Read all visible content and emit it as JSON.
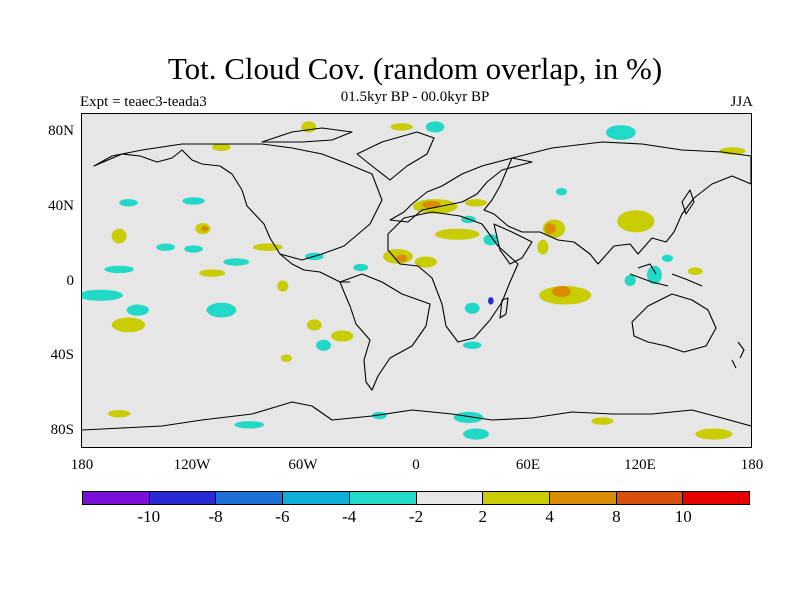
{
  "title": "Tot. Cloud Cov. (random overlap, in %)",
  "subtitle": "01.5kyr BP - 00.0kyr BP",
  "left_label": "Expt = teaec3-teada3",
  "right_label": "JJA",
  "y_ticks": [
    "80N",
    "40N",
    "0",
    "40S",
    "80S"
  ],
  "x_ticks": [
    "180",
    "120W",
    "60W",
    "0",
    "60E",
    "120E",
    "180"
  ],
  "colorbar": {
    "colors": [
      "#7a0fd8",
      "#2a2ad4",
      "#1e6fd6",
      "#0fb0d8",
      "#22d9c8",
      "#e6e6e6",
      "#c8cc00",
      "#d98c00",
      "#d9500a",
      "#e60000"
    ],
    "labels": [
      "-10",
      "-8",
      "-6",
      "-4",
      "-2",
      "2",
      "4",
      "8",
      "10"
    ]
  },
  "map": {
    "type": "filled-contour-map",
    "projection": "cylindrical-equidistant",
    "lon_range": [
      -180,
      180
    ],
    "lat_range": [
      -90,
      90
    ],
    "variable": "Total cloud cover difference (%)",
    "anomaly_regions": [
      {
        "lon": -58,
        "lat": 83,
        "rx": 4,
        "ry": 3,
        "level": "4"
      },
      {
        "lon": -8,
        "lat": 83,
        "rx": 6,
        "ry": 2,
        "level": "4"
      },
      {
        "lon": 10,
        "lat": 83,
        "rx": 5,
        "ry": 3,
        "level": "-4"
      },
      {
        "lon": 110,
        "lat": 80,
        "rx": 8,
        "ry": 4,
        "level": "-4"
      },
      {
        "lon": -105,
        "lat": 72,
        "rx": 5,
        "ry": 2,
        "level": "4"
      },
      {
        "lon": -155,
        "lat": 42,
        "rx": 5,
        "ry": 2,
        "level": "-4"
      },
      {
        "lon": -120,
        "lat": 43,
        "rx": 6,
        "ry": 2,
        "level": "-4"
      },
      {
        "lon": -115,
        "lat": 28,
        "rx": 4,
        "ry": 3,
        "level": "4"
      },
      {
        "lon": -114,
        "lat": 28,
        "rx": 2,
        "ry": 1.5,
        "level": "8"
      },
      {
        "lon": -160,
        "lat": 24,
        "rx": 4,
        "ry": 4,
        "level": "4"
      },
      {
        "lon": -135,
        "lat": 18,
        "rx": 5,
        "ry": 2,
        "level": "-4"
      },
      {
        "lon": -120,
        "lat": 17,
        "rx": 5,
        "ry": 2,
        "level": "-4"
      },
      {
        "lon": -97,
        "lat": 10,
        "rx": 7,
        "ry": 2,
        "level": "-4"
      },
      {
        "lon": -80,
        "lat": 18,
        "rx": 8,
        "ry": 2,
        "level": "4"
      },
      {
        "lon": -55,
        "lat": 13,
        "rx": 5,
        "ry": 2,
        "level": "-4"
      },
      {
        "lon": -30,
        "lat": 7,
        "rx": 4,
        "ry": 2,
        "level": "-4"
      },
      {
        "lon": -160,
        "lat": 6,
        "rx": 8,
        "ry": 2,
        "level": "-4"
      },
      {
        "lon": -110,
        "lat": 4,
        "rx": 7,
        "ry": 2,
        "level": "4"
      },
      {
        "lon": -72,
        "lat": -3,
        "rx": 3,
        "ry": 3,
        "level": "4"
      },
      {
        "lon": -170,
        "lat": -8,
        "rx": 12,
        "ry": 3,
        "level": "-4"
      },
      {
        "lon": -150,
        "lat": -16,
        "rx": 6,
        "ry": 3,
        "level": "-4"
      },
      {
        "lon": -105,
        "lat": -16,
        "rx": 8,
        "ry": 4,
        "level": "-4"
      },
      {
        "lon": -155,
        "lat": -24,
        "rx": 9,
        "ry": 4,
        "level": "4"
      },
      {
        "lon": -55,
        "lat": -24,
        "rx": 4,
        "ry": 3,
        "level": "4"
      },
      {
        "lon": -40,
        "lat": -30,
        "rx": 6,
        "ry": 3,
        "level": "4"
      },
      {
        "lon": -50,
        "lat": -35,
        "rx": 4,
        "ry": 3,
        "level": "-4"
      },
      {
        "lon": -70,
        "lat": -42,
        "rx": 3,
        "ry": 2,
        "level": "4"
      },
      {
        "lon": 10,
        "lat": 40,
        "rx": 12,
        "ry": 4,
        "level": "4"
      },
      {
        "lon": 8,
        "lat": 41,
        "rx": 5,
        "ry": 2,
        "level": "8"
      },
      {
        "lon": 32,
        "lat": 42,
        "rx": 6,
        "ry": 2,
        "level": "4"
      },
      {
        "lon": 22,
        "lat": 25,
        "rx": 12,
        "ry": 3,
        "level": "4"
      },
      {
        "lon": -10,
        "lat": 13,
        "rx": 8,
        "ry": 4,
        "level": "4"
      },
      {
        "lon": -8,
        "lat": 12,
        "rx": 3,
        "ry": 2,
        "level": "8"
      },
      {
        "lon": 5,
        "lat": 10,
        "rx": 6,
        "ry": 3,
        "level": "4"
      },
      {
        "lon": 28,
        "lat": 33,
        "rx": 4,
        "ry": 2,
        "level": "-4"
      },
      {
        "lon": 40,
        "lat": 22,
        "rx": 4,
        "ry": 3,
        "level": "-4"
      },
      {
        "lon": 30,
        "lat": -15,
        "rx": 4,
        "ry": 3,
        "level": "-4"
      },
      {
        "lon": 40,
        "lat": -11,
        "rx": 1.5,
        "ry": 2,
        "level": "-8"
      },
      {
        "lon": 30,
        "lat": -35,
        "rx": 5,
        "ry": 2,
        "level": "-4"
      },
      {
        "lon": 74,
        "lat": 28,
        "rx": 6,
        "ry": 5,
        "level": "4"
      },
      {
        "lon": 72,
        "lat": 28,
        "rx": 3,
        "ry": 3,
        "level": "8"
      },
      {
        "lon": 68,
        "lat": 18,
        "rx": 3,
        "ry": 4,
        "level": "4"
      },
      {
        "lon": 118,
        "lat": 32,
        "rx": 10,
        "ry": 6,
        "level": "4"
      },
      {
        "lon": 80,
        "lat": -8,
        "rx": 14,
        "ry": 5,
        "level": "4"
      },
      {
        "lon": 78,
        "lat": -6,
        "rx": 5,
        "ry": 3,
        "level": "8"
      },
      {
        "lon": 128,
        "lat": 3,
        "rx": 4,
        "ry": 5,
        "level": "-4"
      },
      {
        "lon": 115,
        "lat": 0,
        "rx": 3,
        "ry": 3,
        "level": "-4"
      },
      {
        "lon": 135,
        "lat": 12,
        "rx": 3,
        "ry": 2,
        "level": "-4"
      },
      {
        "lon": 150,
        "lat": 5,
        "rx": 4,
        "ry": 2,
        "level": "4"
      },
      {
        "lon": 170,
        "lat": 70,
        "rx": 7,
        "ry": 2,
        "level": "4"
      },
      {
        "lon": 78,
        "lat": 48,
        "rx": 3,
        "ry": 2,
        "level": "-4"
      },
      {
        "lon": 28,
        "lat": -74,
        "rx": 8,
        "ry": 3,
        "level": "-4"
      },
      {
        "lon": 32,
        "lat": -83,
        "rx": 7,
        "ry": 3,
        "level": "-4"
      },
      {
        "lon": -20,
        "lat": -73,
        "rx": 4,
        "ry": 2,
        "level": "-4"
      },
      {
        "lon": -160,
        "lat": -72,
        "rx": 6,
        "ry": 2,
        "level": "4"
      },
      {
        "lon": -90,
        "lat": -78,
        "rx": 8,
        "ry": 2,
        "level": "-4"
      },
      {
        "lon": 160,
        "lat": -83,
        "rx": 10,
        "ry": 3,
        "level": "4"
      },
      {
        "lon": 100,
        "lat": -76,
        "rx": 6,
        "ry": 2,
        "level": "4"
      }
    ]
  }
}
